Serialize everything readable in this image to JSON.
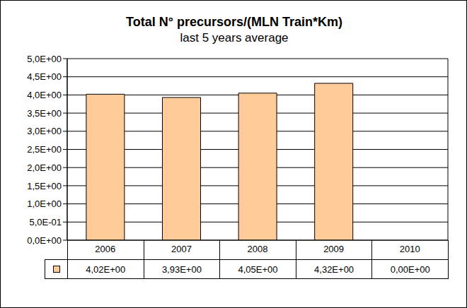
{
  "chart_data": {
    "type": "bar",
    "title": "Total N° precursors/(MLN Train*Km)",
    "subtitle": "last 5 years average",
    "categories": [
      "2006",
      "2007",
      "2008",
      "2009",
      "2010"
    ],
    "values": [
      4.02,
      3.93,
      4.05,
      4.32,
      0
    ],
    "value_labels": [
      "4,02E+00",
      "3,93E+00",
      "4,05E+00",
      "4,32E+00",
      "0,00E+00"
    ],
    "color": "#FFCC99",
    "ylim": [
      0,
      5
    ],
    "yticks": [
      {
        "value": 0,
        "label": "0,0E+00"
      },
      {
        "value": 0.5,
        "label": "5,0E-01"
      },
      {
        "value": 1,
        "label": "1,0E+00"
      },
      {
        "value": 1.5,
        "label": "1,5E+00"
      },
      {
        "value": 2,
        "label": "2,0E+00"
      },
      {
        "value": 2.5,
        "label": "2,5E+00"
      },
      {
        "value": 3,
        "label": "3,0E+00"
      },
      {
        "value": 3.5,
        "label": "3,5E+00"
      },
      {
        "value": 4,
        "label": "4,0E+00"
      },
      {
        "value": 4.5,
        "label": "4,5E+00"
      },
      {
        "value": 5,
        "label": "5,0E+00"
      }
    ],
    "grid": true
  }
}
